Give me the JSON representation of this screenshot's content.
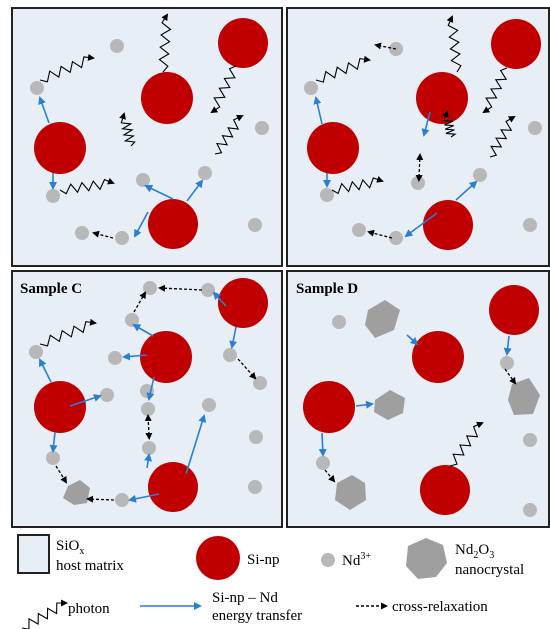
{
  "panels": [
    {
      "id": "a",
      "title": ""
    },
    {
      "id": "b",
      "title": ""
    },
    {
      "id": "c",
      "title": "Sample C"
    },
    {
      "id": "d",
      "title": "Sample D"
    }
  ],
  "legend": {
    "matrix_line1": "SiO",
    "matrix_sub": "x",
    "matrix_line2": "host matrix",
    "sinp": "Si-np",
    "nd_main": "Nd",
    "nd_sup": "3+",
    "nc_line1_a": "Nd",
    "nc_line1_b": "2",
    "nc_line1_c": "O",
    "nc_line1_d": "3",
    "nc_line2": "nanocrystal",
    "photon": "photon",
    "transfer_line1": "Si-np – Nd",
    "transfer_line2": "energy transfer",
    "cross": "cross-relaxation"
  },
  "colors": {
    "panel_fill": "#e8eef6",
    "panel_border": "#222222",
    "sinp": "#c00000",
    "nd_ion": "#b8b8b8",
    "nanocrystal": "#9f9f9f",
    "transfer_arrow": "#2a7fd4",
    "cross_arrow": "#000000",
    "photon": "#000000"
  }
}
